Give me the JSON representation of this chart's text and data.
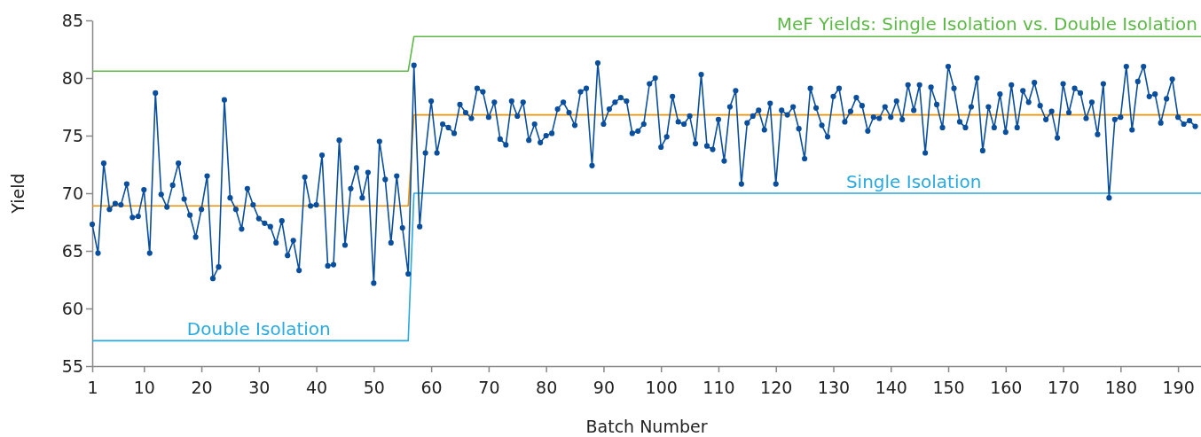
{
  "chart_data": {
    "type": "line",
    "title": "MeF Yields: Single Isolation vs. Double Isolation",
    "xlabel": "Batch Number",
    "ylabel": "Yield",
    "xlim": [
      1,
      194
    ],
    "xticks": [
      1,
      10,
      20,
      30,
      40,
      50,
      60,
      70,
      80,
      90,
      100,
      110,
      120,
      130,
      140,
      150,
      160,
      170,
      180,
      190
    ],
    "ylim": [
      55,
      85
    ],
    "yticks": [
      55,
      60,
      65,
      70,
      75,
      80,
      85
    ],
    "grid": false,
    "line_style": "solid",
    "annotations": [
      {
        "text": "Double Isolation",
        "x": 30,
        "y": 57.2
      },
      {
        "text": "Single Isolation",
        "x": 144,
        "y": 70
      }
    ],
    "series": [
      {
        "color": "#5cb946",
        "marker": "none",
        "x": [
          1,
          56,
          57,
          194
        ],
        "values": [
          80.6,
          80.6,
          83.6,
          83.6
        ]
      },
      {
        "color": "#f39200",
        "marker": "none",
        "x": [
          1,
          56,
          57,
          194
        ],
        "values": [
          68.9,
          68.9,
          76.8,
          76.8
        ]
      },
      {
        "color": "#29a9e0",
        "marker": "none",
        "x": [
          1,
          56,
          57,
          194
        ],
        "values": [
          57.2,
          57.2,
          70,
          70
        ]
      },
      {
        "color": "#0a4f9e",
        "marker": "circle",
        "x": [
          1,
          2,
          3,
          4,
          5,
          6,
          7,
          8,
          9,
          10,
          11,
          12,
          13,
          14,
          15,
          16,
          17,
          18,
          19,
          20,
          21,
          22,
          23,
          24,
          25,
          26,
          27,
          28,
          29,
          30,
          31,
          32,
          33,
          34,
          35,
          36,
          37,
          38,
          39,
          40,
          41,
          42,
          43,
          44,
          45,
          46,
          47,
          48,
          49,
          50,
          51,
          52,
          53,
          54,
          55,
          56,
          57,
          58,
          59,
          60,
          61,
          62,
          63,
          64,
          65,
          66,
          67,
          68,
          69,
          70,
          71,
          72,
          73,
          74,
          75,
          76,
          77,
          78,
          79,
          80,
          81,
          82,
          83,
          84,
          85,
          86,
          87,
          88,
          89,
          90,
          91,
          92,
          93,
          94,
          95,
          96,
          97,
          98,
          99,
          100,
          101,
          102,
          103,
          104,
          105,
          106,
          107,
          108,
          109,
          110,
          111,
          112,
          113,
          114,
          115,
          116,
          117,
          118,
          119,
          120,
          121,
          122,
          123,
          124,
          125,
          126,
          127,
          128,
          129,
          130,
          131,
          132,
          133,
          134,
          135,
          136,
          137,
          138,
          139,
          140,
          141,
          142,
          143,
          144,
          145,
          146,
          147,
          148,
          149,
          150,
          151,
          152,
          153,
          154,
          155,
          156,
          157,
          158,
          159,
          160,
          161,
          162,
          163,
          164,
          165,
          166,
          167,
          168,
          169,
          170,
          171,
          172,
          173,
          174,
          175,
          176,
          177,
          178,
          179,
          180,
          181,
          182,
          183,
          184,
          185,
          186,
          187,
          188,
          189,
          190,
          191,
          192,
          193
        ],
        "values": [
          67.3,
          64.8,
          72.6,
          68.6,
          69.1,
          69.0,
          70.8,
          67.9,
          68.0,
          70.3,
          64.8,
          78.7,
          69.9,
          68.8,
          70.7,
          72.6,
          69.5,
          68.1,
          66.2,
          68.6,
          71.5,
          62.6,
          63.6,
          78.1,
          69.6,
          68.6,
          66.9,
          70.4,
          69.0,
          67.8,
          67.4,
          67.1,
          65.7,
          67.6,
          64.6,
          65.9,
          63.3,
          71.4,
          68.9,
          69.0,
          73.3,
          63.7,
          63.8,
          74.6,
          65.5,
          70.4,
          72.2,
          69.6,
          71.8,
          62.2,
          74.5,
          71.2,
          65.7,
          71.5,
          67.0,
          63.0,
          81.1,
          67.1,
          73.5,
          78.0,
          73.5,
          76.0,
          75.7,
          75.2,
          77.7,
          77.0,
          76.5,
          79.1,
          78.8,
          76.6,
          77.9,
          74.7,
          74.2,
          78.0,
          76.7,
          77.9,
          74.6,
          76.0,
          74.4,
          75.0,
          75.2,
          77.3,
          77.9,
          77.0,
          75.9,
          78.8,
          79.1,
          72.4,
          81.3,
          76.0,
          77.3,
          77.9,
          78.3,
          78.0,
          75.2,
          75.4,
          76.0,
          79.5,
          80.0,
          74.0,
          74.9,
          78.4,
          76.2,
          76.0,
          76.7,
          74.3,
          80.3,
          74.1,
          73.8,
          76.4,
          72.8,
          77.5,
          78.9,
          70.8,
          76.1,
          76.7,
          77.2,
          75.5,
          77.8,
          70.8,
          77.2,
          76.8,
          77.5,
          75.6,
          73.0,
          79.1,
          77.4,
          75.9,
          74.9,
          78.4,
          79.1,
          76.2,
          77.1,
          78.3,
          77.6,
          75.4,
          76.6,
          76.5,
          77.5,
          76.6,
          78.0,
          76.4,
          79.4,
          77.2,
          79.4,
          73.5,
          79.2,
          77.7,
          75.7,
          81.0,
          79.1,
          76.2,
          75.7,
          77.5,
          80.0,
          73.7,
          77.5,
          75.7,
          78.6,
          75.3,
          79.4,
          75.7,
          78.9,
          77.9,
          79.6,
          77.6,
          76.4,
          77.1,
          74.8,
          79.5,
          77.0,
          79.1,
          78.7,
          76.5,
          77.9,
          75.1,
          79.5,
          69.6,
          76.4,
          76.6,
          81.0,
          75.5,
          79.7,
          81.0,
          78.4,
          78.6,
          76.1,
          78.2,
          79.9,
          76.6,
          76.0,
          76.3,
          75.8
        ]
      }
    ]
  }
}
